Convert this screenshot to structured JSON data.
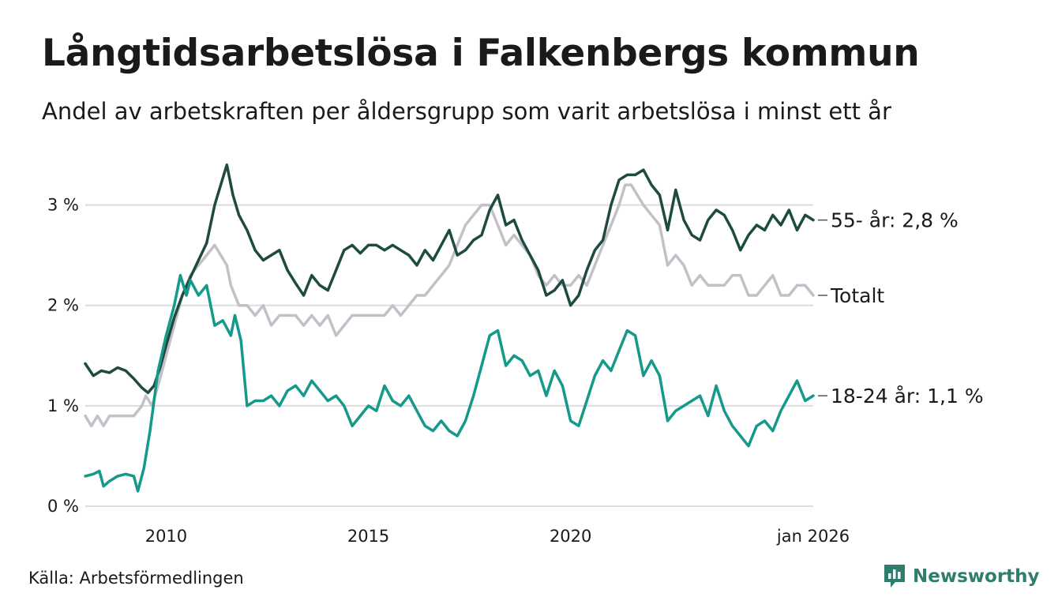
{
  "title": "Långtidsarbetslösa i Falkenbergs kommun",
  "subtitle": "Andel av arbetskraften per åldersgrupp som varit arbetslösa i minst ett år",
  "source": "Källa: Arbetsförmedlingen",
  "brand": {
    "name": "Newsworthy",
    "icon": "bar-chart-speech-bubble-icon"
  },
  "colors": {
    "s55": "#1e4b40",
    "total": "#c2c0c8",
    "s1824": "#14998a",
    "grid": "#dddddd",
    "text": "#1a1a1a"
  },
  "chart_data": {
    "type": "line",
    "xlim": [
      2008.0,
      2026.0
    ],
    "ylim": [
      0,
      3.5
    ],
    "grid": true,
    "yticks": [
      {
        "value": 0,
        "label": "0 %"
      },
      {
        "value": 1,
        "label": "1 %"
      },
      {
        "value": 2,
        "label": "2 %"
      },
      {
        "value": 3,
        "label": "3 %"
      }
    ],
    "xticks": [
      {
        "value": 2010.0,
        "label": "2010"
      },
      {
        "value": 2015.0,
        "label": "2015"
      },
      {
        "value": 2020.0,
        "label": "2020"
      },
      {
        "value": 2026.0,
        "label": "jan 2026"
      }
    ],
    "series": [
      {
        "name": "Totalt",
        "label": "Totalt",
        "color_key": "total",
        "points": [
          [
            2008.0,
            0.9
          ],
          [
            2008.15,
            0.8
          ],
          [
            2008.3,
            0.9
          ],
          [
            2008.45,
            0.8
          ],
          [
            2008.6,
            0.9
          ],
          [
            2008.75,
            0.9
          ],
          [
            2009.0,
            0.9
          ],
          [
            2009.2,
            0.9
          ],
          [
            2009.4,
            1.0
          ],
          [
            2009.5,
            1.1
          ],
          [
            2009.65,
            1.0
          ],
          [
            2009.8,
            1.2
          ],
          [
            2010.0,
            1.5
          ],
          [
            2010.2,
            1.8
          ],
          [
            2010.4,
            2.1
          ],
          [
            2010.6,
            2.3
          ],
          [
            2010.8,
            2.4
          ],
          [
            2011.0,
            2.5
          ],
          [
            2011.2,
            2.6
          ],
          [
            2011.35,
            2.5
          ],
          [
            2011.5,
            2.4
          ],
          [
            2011.6,
            2.2
          ],
          [
            2011.8,
            2.0
          ],
          [
            2012.0,
            2.0
          ],
          [
            2012.2,
            1.9
          ],
          [
            2012.4,
            2.0
          ],
          [
            2012.6,
            1.8
          ],
          [
            2012.8,
            1.9
          ],
          [
            2013.0,
            1.9
          ],
          [
            2013.2,
            1.9
          ],
          [
            2013.4,
            1.8
          ],
          [
            2013.6,
            1.9
          ],
          [
            2013.8,
            1.8
          ],
          [
            2014.0,
            1.9
          ],
          [
            2014.2,
            1.7
          ],
          [
            2014.4,
            1.8
          ],
          [
            2014.6,
            1.9
          ],
          [
            2014.8,
            1.9
          ],
          [
            2015.0,
            1.9
          ],
          [
            2015.2,
            1.9
          ],
          [
            2015.4,
            1.9
          ],
          [
            2015.6,
            2.0
          ],
          [
            2015.8,
            1.9
          ],
          [
            2016.0,
            2.0
          ],
          [
            2016.2,
            2.1
          ],
          [
            2016.4,
            2.1
          ],
          [
            2016.6,
            2.2
          ],
          [
            2016.8,
            2.3
          ],
          [
            2017.0,
            2.4
          ],
          [
            2017.2,
            2.6
          ],
          [
            2017.4,
            2.8
          ],
          [
            2017.6,
            2.9
          ],
          [
            2017.8,
            3.0
          ],
          [
            2018.0,
            3.0
          ],
          [
            2018.2,
            2.8
          ],
          [
            2018.4,
            2.6
          ],
          [
            2018.6,
            2.7
          ],
          [
            2018.8,
            2.6
          ],
          [
            2019.0,
            2.5
          ],
          [
            2019.2,
            2.3
          ],
          [
            2019.4,
            2.2
          ],
          [
            2019.6,
            2.3
          ],
          [
            2019.8,
            2.2
          ],
          [
            2020.0,
            2.2
          ],
          [
            2020.2,
            2.3
          ],
          [
            2020.4,
            2.2
          ],
          [
            2020.6,
            2.4
          ],
          [
            2020.8,
            2.6
          ],
          [
            2021.0,
            2.8
          ],
          [
            2021.2,
            3.0
          ],
          [
            2021.35,
            3.2
          ],
          [
            2021.5,
            3.2
          ],
          [
            2021.65,
            3.1
          ],
          [
            2021.8,
            3.0
          ],
          [
            2022.0,
            2.9
          ],
          [
            2022.2,
            2.8
          ],
          [
            2022.4,
            2.4
          ],
          [
            2022.6,
            2.5
          ],
          [
            2022.8,
            2.4
          ],
          [
            2023.0,
            2.2
          ],
          [
            2023.2,
            2.3
          ],
          [
            2023.4,
            2.2
          ],
          [
            2023.6,
            2.2
          ],
          [
            2023.8,
            2.2
          ],
          [
            2024.0,
            2.3
          ],
          [
            2024.2,
            2.3
          ],
          [
            2024.4,
            2.1
          ],
          [
            2024.6,
            2.1
          ],
          [
            2024.8,
            2.2
          ],
          [
            2025.0,
            2.3
          ],
          [
            2025.2,
            2.1
          ],
          [
            2025.4,
            2.1
          ],
          [
            2025.6,
            2.2
          ],
          [
            2025.8,
            2.2
          ],
          [
            2026.0,
            2.1
          ]
        ]
      },
      {
        "name": "55- år",
        "label": "55- år: 2,8 %",
        "color_key": "s55",
        "points": [
          [
            2008.0,
            1.42
          ],
          [
            2008.2,
            1.3
          ],
          [
            2008.4,
            1.35
          ],
          [
            2008.6,
            1.33
          ],
          [
            2008.8,
            1.38
          ],
          [
            2009.0,
            1.35
          ],
          [
            2009.2,
            1.27
          ],
          [
            2009.4,
            1.18
          ],
          [
            2009.55,
            1.13
          ],
          [
            2009.7,
            1.2
          ],
          [
            2009.85,
            1.38
          ],
          [
            2010.0,
            1.6
          ],
          [
            2010.2,
            1.88
          ],
          [
            2010.4,
            2.1
          ],
          [
            2010.6,
            2.28
          ],
          [
            2010.8,
            2.45
          ],
          [
            2011.0,
            2.62
          ],
          [
            2011.2,
            3.0
          ],
          [
            2011.35,
            3.2
          ],
          [
            2011.5,
            3.4
          ],
          [
            2011.65,
            3.1
          ],
          [
            2011.8,
            2.9
          ],
          [
            2012.0,
            2.75
          ],
          [
            2012.2,
            2.55
          ],
          [
            2012.4,
            2.45
          ],
          [
            2012.6,
            2.5
          ],
          [
            2012.8,
            2.55
          ],
          [
            2013.0,
            2.35
          ],
          [
            2013.2,
            2.22
          ],
          [
            2013.4,
            2.1
          ],
          [
            2013.6,
            2.3
          ],
          [
            2013.8,
            2.2
          ],
          [
            2014.0,
            2.15
          ],
          [
            2014.2,
            2.35
          ],
          [
            2014.4,
            2.55
          ],
          [
            2014.6,
            2.6
          ],
          [
            2014.8,
            2.52
          ],
          [
            2015.0,
            2.6
          ],
          [
            2015.2,
            2.6
          ],
          [
            2015.4,
            2.55
          ],
          [
            2015.6,
            2.6
          ],
          [
            2015.8,
            2.55
          ],
          [
            2016.0,
            2.5
          ],
          [
            2016.2,
            2.4
          ],
          [
            2016.4,
            2.55
          ],
          [
            2016.6,
            2.45
          ],
          [
            2016.8,
            2.6
          ],
          [
            2017.0,
            2.75
          ],
          [
            2017.2,
            2.5
          ],
          [
            2017.4,
            2.55
          ],
          [
            2017.6,
            2.65
          ],
          [
            2017.8,
            2.7
          ],
          [
            2018.0,
            2.95
          ],
          [
            2018.2,
            3.1
          ],
          [
            2018.4,
            2.8
          ],
          [
            2018.6,
            2.85
          ],
          [
            2018.8,
            2.65
          ],
          [
            2019.0,
            2.5
          ],
          [
            2019.2,
            2.35
          ],
          [
            2019.4,
            2.1
          ],
          [
            2019.6,
            2.15
          ],
          [
            2019.8,
            2.25
          ],
          [
            2020.0,
            2.0
          ],
          [
            2020.2,
            2.1
          ],
          [
            2020.4,
            2.35
          ],
          [
            2020.6,
            2.55
          ],
          [
            2020.8,
            2.65
          ],
          [
            2021.0,
            3.0
          ],
          [
            2021.2,
            3.25
          ],
          [
            2021.4,
            3.3
          ],
          [
            2021.6,
            3.3
          ],
          [
            2021.8,
            3.35
          ],
          [
            2022.0,
            3.2
          ],
          [
            2022.2,
            3.1
          ],
          [
            2022.4,
            2.75
          ],
          [
            2022.6,
            3.15
          ],
          [
            2022.8,
            2.85
          ],
          [
            2023.0,
            2.7
          ],
          [
            2023.2,
            2.65
          ],
          [
            2023.4,
            2.85
          ],
          [
            2023.6,
            2.95
          ],
          [
            2023.8,
            2.9
          ],
          [
            2024.0,
            2.75
          ],
          [
            2024.2,
            2.55
          ],
          [
            2024.4,
            2.7
          ],
          [
            2024.6,
            2.8
          ],
          [
            2024.8,
            2.75
          ],
          [
            2025.0,
            2.9
          ],
          [
            2025.2,
            2.8
          ],
          [
            2025.4,
            2.95
          ],
          [
            2025.6,
            2.75
          ],
          [
            2025.8,
            2.9
          ],
          [
            2026.0,
            2.85
          ]
        ]
      },
      {
        "name": "18-24 år",
        "label": "18-24 år: 1,1 %",
        "color_key": "s1824",
        "points": [
          [
            2008.0,
            0.3
          ],
          [
            2008.2,
            0.32
          ],
          [
            2008.35,
            0.35
          ],
          [
            2008.45,
            0.2
          ],
          [
            2008.6,
            0.25
          ],
          [
            2008.8,
            0.3
          ],
          [
            2009.0,
            0.32
          ],
          [
            2009.2,
            0.3
          ],
          [
            2009.3,
            0.15
          ],
          [
            2009.45,
            0.38
          ],
          [
            2009.6,
            0.75
          ],
          [
            2009.8,
            1.35
          ],
          [
            2010.0,
            1.7
          ],
          [
            2010.2,
            2.0
          ],
          [
            2010.35,
            2.3
          ],
          [
            2010.5,
            2.1
          ],
          [
            2010.6,
            2.25
          ],
          [
            2010.8,
            2.1
          ],
          [
            2011.0,
            2.2
          ],
          [
            2011.2,
            1.8
          ],
          [
            2011.4,
            1.85
          ],
          [
            2011.6,
            1.7
          ],
          [
            2011.7,
            1.9
          ],
          [
            2011.85,
            1.65
          ],
          [
            2012.0,
            1.0
          ],
          [
            2012.2,
            1.05
          ],
          [
            2012.4,
            1.05
          ],
          [
            2012.6,
            1.1
          ],
          [
            2012.8,
            1.0
          ],
          [
            2013.0,
            1.15
          ],
          [
            2013.2,
            1.2
          ],
          [
            2013.4,
            1.1
          ],
          [
            2013.6,
            1.25
          ],
          [
            2013.8,
            1.15
          ],
          [
            2014.0,
            1.05
          ],
          [
            2014.2,
            1.1
          ],
          [
            2014.4,
            1.0
          ],
          [
            2014.6,
            0.8
          ],
          [
            2014.8,
            0.9
          ],
          [
            2015.0,
            1.0
          ],
          [
            2015.2,
            0.95
          ],
          [
            2015.4,
            1.2
          ],
          [
            2015.6,
            1.05
          ],
          [
            2015.8,
            1.0
          ],
          [
            2016.0,
            1.1
          ],
          [
            2016.2,
            0.95
          ],
          [
            2016.4,
            0.8
          ],
          [
            2016.6,
            0.75
          ],
          [
            2016.8,
            0.85
          ],
          [
            2017.0,
            0.75
          ],
          [
            2017.2,
            0.7
          ],
          [
            2017.4,
            0.85
          ],
          [
            2017.6,
            1.1
          ],
          [
            2017.8,
            1.4
          ],
          [
            2018.0,
            1.7
          ],
          [
            2018.2,
            1.75
          ],
          [
            2018.4,
            1.4
          ],
          [
            2018.6,
            1.5
          ],
          [
            2018.8,
            1.45
          ],
          [
            2019.0,
            1.3
          ],
          [
            2019.2,
            1.35
          ],
          [
            2019.4,
            1.1
          ],
          [
            2019.6,
            1.35
          ],
          [
            2019.8,
            1.2
          ],
          [
            2020.0,
            0.85
          ],
          [
            2020.2,
            0.8
          ],
          [
            2020.4,
            1.05
          ],
          [
            2020.6,
            1.3
          ],
          [
            2020.8,
            1.45
          ],
          [
            2021.0,
            1.35
          ],
          [
            2021.2,
            1.55
          ],
          [
            2021.4,
            1.75
          ],
          [
            2021.6,
            1.7
          ],
          [
            2021.8,
            1.3
          ],
          [
            2022.0,
            1.45
          ],
          [
            2022.2,
            1.3
          ],
          [
            2022.4,
            0.85
          ],
          [
            2022.6,
            0.95
          ],
          [
            2022.8,
            1.0
          ],
          [
            2023.0,
            1.05
          ],
          [
            2023.2,
            1.1
          ],
          [
            2023.4,
            0.9
          ],
          [
            2023.6,
            1.2
          ],
          [
            2023.8,
            0.95
          ],
          [
            2024.0,
            0.8
          ],
          [
            2024.2,
            0.7
          ],
          [
            2024.4,
            0.6
          ],
          [
            2024.6,
            0.8
          ],
          [
            2024.8,
            0.85
          ],
          [
            2025.0,
            0.75
          ],
          [
            2025.2,
            0.95
          ],
          [
            2025.4,
            1.1
          ],
          [
            2025.6,
            1.25
          ],
          [
            2025.8,
            1.05
          ],
          [
            2026.0,
            1.1
          ]
        ]
      }
    ]
  }
}
